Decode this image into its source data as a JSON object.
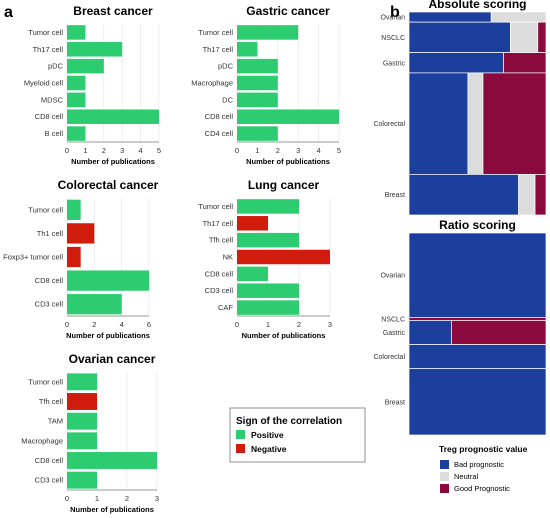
{
  "panel_labels": {
    "a": "a",
    "b": "b"
  },
  "colors": {
    "positive": "#2ecc71",
    "negative": "#d01c0c",
    "bad_prognostic": "#1c3f9e",
    "neutral": "#dcdcdc",
    "good_prognostic": "#8b0a3e"
  },
  "axis_xlabel": "Number of publications",
  "legend_corr": {
    "title": "Sign of the correlation",
    "items": [
      {
        "label": "Positive",
        "color": "#2ecc71"
      },
      {
        "label": "Negative",
        "color": "#d01c0c"
      }
    ]
  },
  "legend_treg": {
    "title": "Treg prognostic value",
    "items": [
      {
        "label": "Bad prognostic",
        "color": "#1c3f9e"
      },
      {
        "label": "Neutral",
        "color": "#dcdcdc"
      },
      {
        "label": "Good Prognostic",
        "color": "#8b0a3e"
      }
    ]
  },
  "chart_data": [
    {
      "type": "bar",
      "orientation": "horizontal",
      "title": "Breast cancer",
      "xlabel": "Number of publications",
      "xlim": [
        0,
        5
      ],
      "xticks": [
        0,
        1,
        2,
        3,
        4,
        5
      ],
      "categories": [
        "Tumor cell",
        "Th17 cell",
        "pDC",
        "Myeloid cell",
        "MDSC",
        "CD8 cell",
        "B cell"
      ],
      "values": [
        1,
        3,
        2,
        1,
        1,
        5,
        1
      ],
      "signs": [
        "Positive",
        "Positive",
        "Positive",
        "Positive",
        "Positive",
        "Positive",
        "Positive"
      ]
    },
    {
      "type": "bar",
      "orientation": "horizontal",
      "title": "Gastric cancer",
      "xlabel": "Number of publications",
      "xlim": [
        0,
        5
      ],
      "xticks": [
        0,
        1,
        2,
        3,
        4,
        5
      ],
      "categories": [
        "Tumor cell",
        "Th17 cell",
        "pDC",
        "Macrophage",
        "DC",
        "CD8 cell",
        "CD4 cell"
      ],
      "values": [
        3,
        1,
        2,
        2,
        2,
        5,
        2
      ],
      "signs": [
        "Positive",
        "Positive",
        "Positive",
        "Positive",
        "Positive",
        "Positive",
        "Positive"
      ]
    },
    {
      "type": "bar",
      "orientation": "horizontal",
      "title": "Colorectal cancer",
      "xlabel": "Number of publications",
      "xlim": [
        0,
        6
      ],
      "xticks": [
        0,
        2,
        4,
        6
      ],
      "categories": [
        "Tumor cell",
        "Th1 cell",
        "Foxp3+ tumor cell",
        "CD8 cell",
        "CD3 cell"
      ],
      "values": [
        1,
        2,
        1,
        6,
        4
      ],
      "signs": [
        "Positive",
        "Negative",
        "Negative",
        "Positive",
        "Positive"
      ]
    },
    {
      "type": "bar",
      "orientation": "horizontal",
      "title": "Lung cancer",
      "xlabel": "Number of publications",
      "xlim": [
        0,
        3
      ],
      "xticks": [
        0,
        1,
        2,
        3
      ],
      "categories": [
        "Tumor cell",
        "Th17 cell",
        "Tfh cell",
        "NK",
        "CD8 cell",
        "CD3 cell",
        "CAF"
      ],
      "values": [
        2,
        1,
        2,
        3,
        1,
        2,
        2
      ],
      "signs": [
        "Positive",
        "Negative",
        "Positive",
        "Negative",
        "Positive",
        "Positive",
        "Positive"
      ]
    },
    {
      "type": "bar",
      "orientation": "horizontal",
      "title": "Ovarian cancer",
      "xlabel": "Number of publications",
      "xlim": [
        0,
        3
      ],
      "xticks": [
        0,
        1,
        2,
        3
      ],
      "categories": [
        "Tumor cell",
        "Tfh cell",
        "TAM",
        "Macrophage",
        "CD8 cell",
        "CD3 cell"
      ],
      "values": [
        1,
        1,
        1,
        1,
        3,
        1
      ],
      "signs": [
        "Positive",
        "Negative",
        "Positive",
        "Positive",
        "Positive",
        "Positive"
      ]
    },
    {
      "type": "mosaic",
      "title": "Absolute scoring",
      "categories": [
        "Ovarian",
        "NSCLC",
        "Gastric",
        "Colorectal",
        "Breast"
      ],
      "row_weights": [
        1,
        3,
        2,
        10,
        4
      ],
      "series": [
        {
          "name": "Bad prognostic",
          "values": [
            0.6,
            0.74,
            0.69,
            0.43,
            0.8
          ]
        },
        {
          "name": "Neutral",
          "values": [
            0.4,
            0.2,
            0,
            0.11,
            0.12
          ]
        },
        {
          "name": "Good Prognostic",
          "values": [
            0,
            0.06,
            0.31,
            0.46,
            0.08
          ]
        }
      ]
    },
    {
      "type": "mosaic",
      "title": "Ratio scoring",
      "categories": [
        "Ovarian",
        "NSCLC",
        "Gastric",
        "Colorectal",
        "Breast"
      ],
      "row_weights": [
        28,
        1,
        8,
        8,
        22
      ],
      "series": [
        {
          "name": "Bad prognostic",
          "values": [
            1,
            0,
            0.31,
            1,
            1
          ]
        },
        {
          "name": "Neutral",
          "values": [
            0,
            0,
            0,
            0,
            0
          ]
        },
        {
          "name": "Good Prognostic",
          "values": [
            0,
            1,
            0.69,
            0,
            0
          ]
        }
      ]
    }
  ]
}
